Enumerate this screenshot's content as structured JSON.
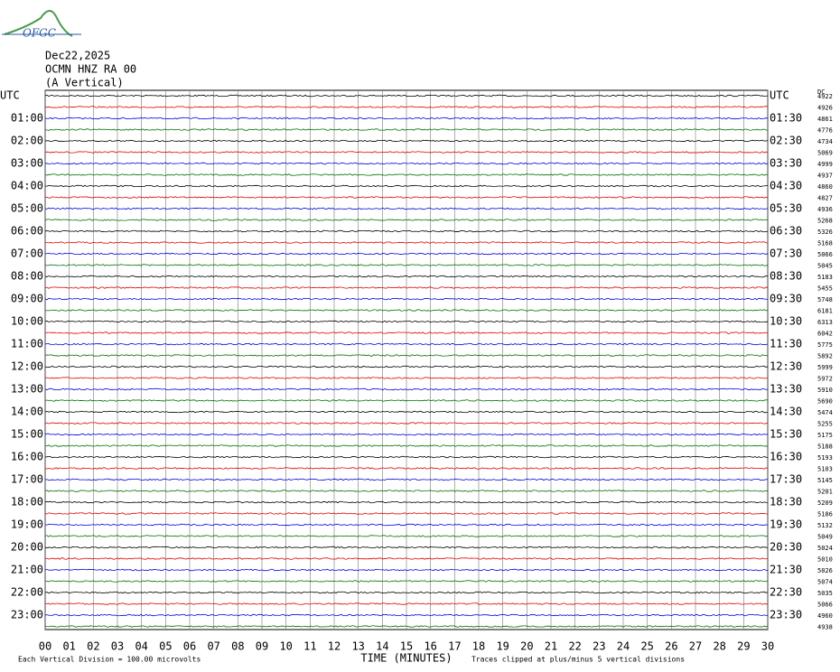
{
  "header": {
    "logo": "OFGC",
    "date": "Dec22,2025",
    "station": "OCMN HNZ RA 00",
    "component": "(A Vertical)"
  },
  "chart_data": {
    "type": "helicorder",
    "xlabel": "TIME (MINUTES)",
    "xlim": [
      0,
      30
    ],
    "xticks": [
      {
        "value": 0,
        "label": "00"
      },
      {
        "value": 1,
        "label": "01"
      },
      {
        "value": 2,
        "label": "02"
      },
      {
        "value": 3,
        "label": "03"
      },
      {
        "value": 4,
        "label": "04"
      },
      {
        "value": 5,
        "label": "05"
      },
      {
        "value": 6,
        "label": "06"
      },
      {
        "value": 7,
        "label": "07"
      },
      {
        "value": 8,
        "label": "08"
      },
      {
        "value": 9,
        "label": "09"
      },
      10,
      11,
      12,
      13,
      14,
      15,
      16,
      17,
      18,
      19,
      20,
      21,
      22,
      23,
      24,
      25,
      26,
      27,
      28,
      29,
      30
    ],
    "left_labels": [
      "UTC",
      "01:00",
      "02:00",
      "03:00",
      "04:00",
      "05:00",
      "06:00",
      "07:00",
      "08:00",
      "09:00",
      "10:00",
      "11:00",
      "12:00",
      "13:00",
      "14:00",
      "15:00",
      "16:00",
      "17:00",
      "18:00",
      "19:00",
      "20:00",
      "21:00",
      "22:00",
      "23:00"
    ],
    "right_labels": [
      "UTC",
      "01:30",
      "02:30",
      "03:30",
      "04:30",
      "05:30",
      "06:30",
      "07:30",
      "08:30",
      "09:30",
      "10:30",
      "11:30",
      "12:30",
      "13:30",
      "14:30",
      "15:30",
      "16:30",
      "17:30",
      "18:30",
      "19:30",
      "20:30",
      "21:30",
      "22:30",
      "23:30"
    ],
    "dc_label": "DC",
    "dc_values": [
      4922,
      4926,
      4861,
      4776,
      4734,
      5069,
      4999,
      4937,
      4860,
      4827,
      4936,
      5268,
      5326,
      5168,
      5066,
      5045,
      5183,
      5455,
      5748,
      6181,
      6313,
      6042,
      5775,
      5892,
      5999,
      5972,
      5910,
      5690,
      5474,
      5255,
      5175,
      5188,
      5193,
      5103,
      5145,
      5201,
      5209,
      5186,
      5132,
      5049,
      5024,
      5010,
      5026,
      5074,
      5035,
      5066,
      4960,
      4938
    ],
    "trace_colors": [
      "#000000",
      "#e00000",
      "#0000e0",
      "#007000"
    ],
    "scale_note": "Each Vertical Division =  100.00 microvolts",
    "clip_note": "Traces clipped at plus/minus 5 vertical divisions"
  }
}
